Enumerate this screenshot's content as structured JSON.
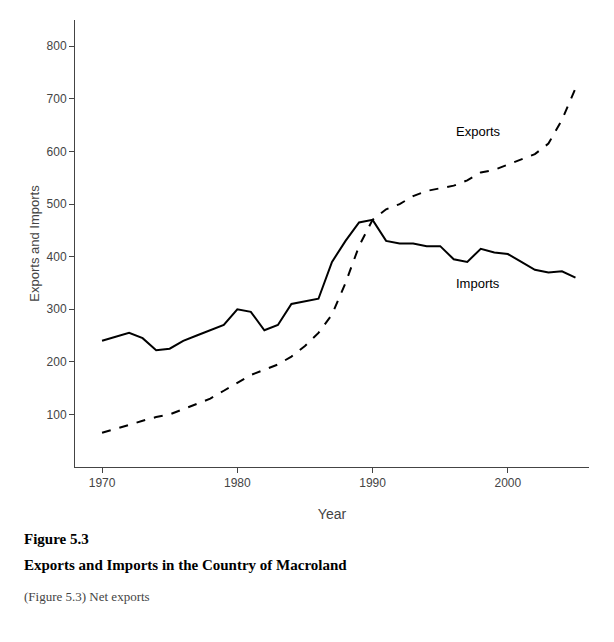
{
  "chart_data": {
    "type": "line",
    "title": "Figure 5.3",
    "subtitle": "Exports and Imports in the Country of Macroland",
    "caption": "(Figure 5.3) Net exports",
    "x_label": "Year",
    "y_label": "Exports and Imports",
    "x": [
      1970,
      1971,
      1972,
      1973,
      1974,
      1975,
      1976,
      1977,
      1978,
      1979,
      1980,
      1981,
      1982,
      1983,
      1984,
      1985,
      1986,
      1987,
      1988,
      1989,
      1990,
      1991,
      1992,
      1993,
      1994,
      1995,
      1996,
      1997,
      1998,
      1999,
      2000,
      2001,
      2002,
      2003,
      2004,
      2005
    ],
    "series": [
      {
        "color": "#000000",
        "line_style": "dashed",
        "values": [
          65,
          72,
          80,
          88,
          95,
          100,
          110,
          120,
          130,
          145,
          160,
          175,
          185,
          195,
          210,
          230,
          255,
          290,
          350,
          420,
          470,
          490,
          500,
          515,
          525,
          530,
          535,
          545,
          560,
          565,
          575,
          585,
          595,
          615,
          660,
          720
        ]
      },
      {
        "color": "#000000",
        "line_style": "solid",
        "values": [
          240,
          248,
          255,
          245,
          222,
          225,
          240,
          250,
          260,
          270,
          300,
          295,
          260,
          270,
          310,
          315,
          320,
          390,
          430,
          465,
          470,
          430,
          425,
          425,
          420,
          420,
          395,
          390,
          415,
          408,
          405,
          390,
          375,
          370,
          372,
          360
        ]
      }
    ],
    "annotations": [
      {
        "text": "Exports",
        "x": 1996,
        "y": 638,
        "color": "#000000"
      },
      {
        "text": "Imports",
        "x": 1996,
        "y": 348,
        "color": "#000000"
      }
    ],
    "xlim": [
      1968,
      2006
    ],
    "xticks": [
      1970,
      1980,
      1990,
      2000
    ],
    "ylim": [
      0,
      850
    ],
    "yticks": [
      100,
      200,
      300,
      400,
      500,
      600,
      700,
      800
    ],
    "grid": false
  }
}
